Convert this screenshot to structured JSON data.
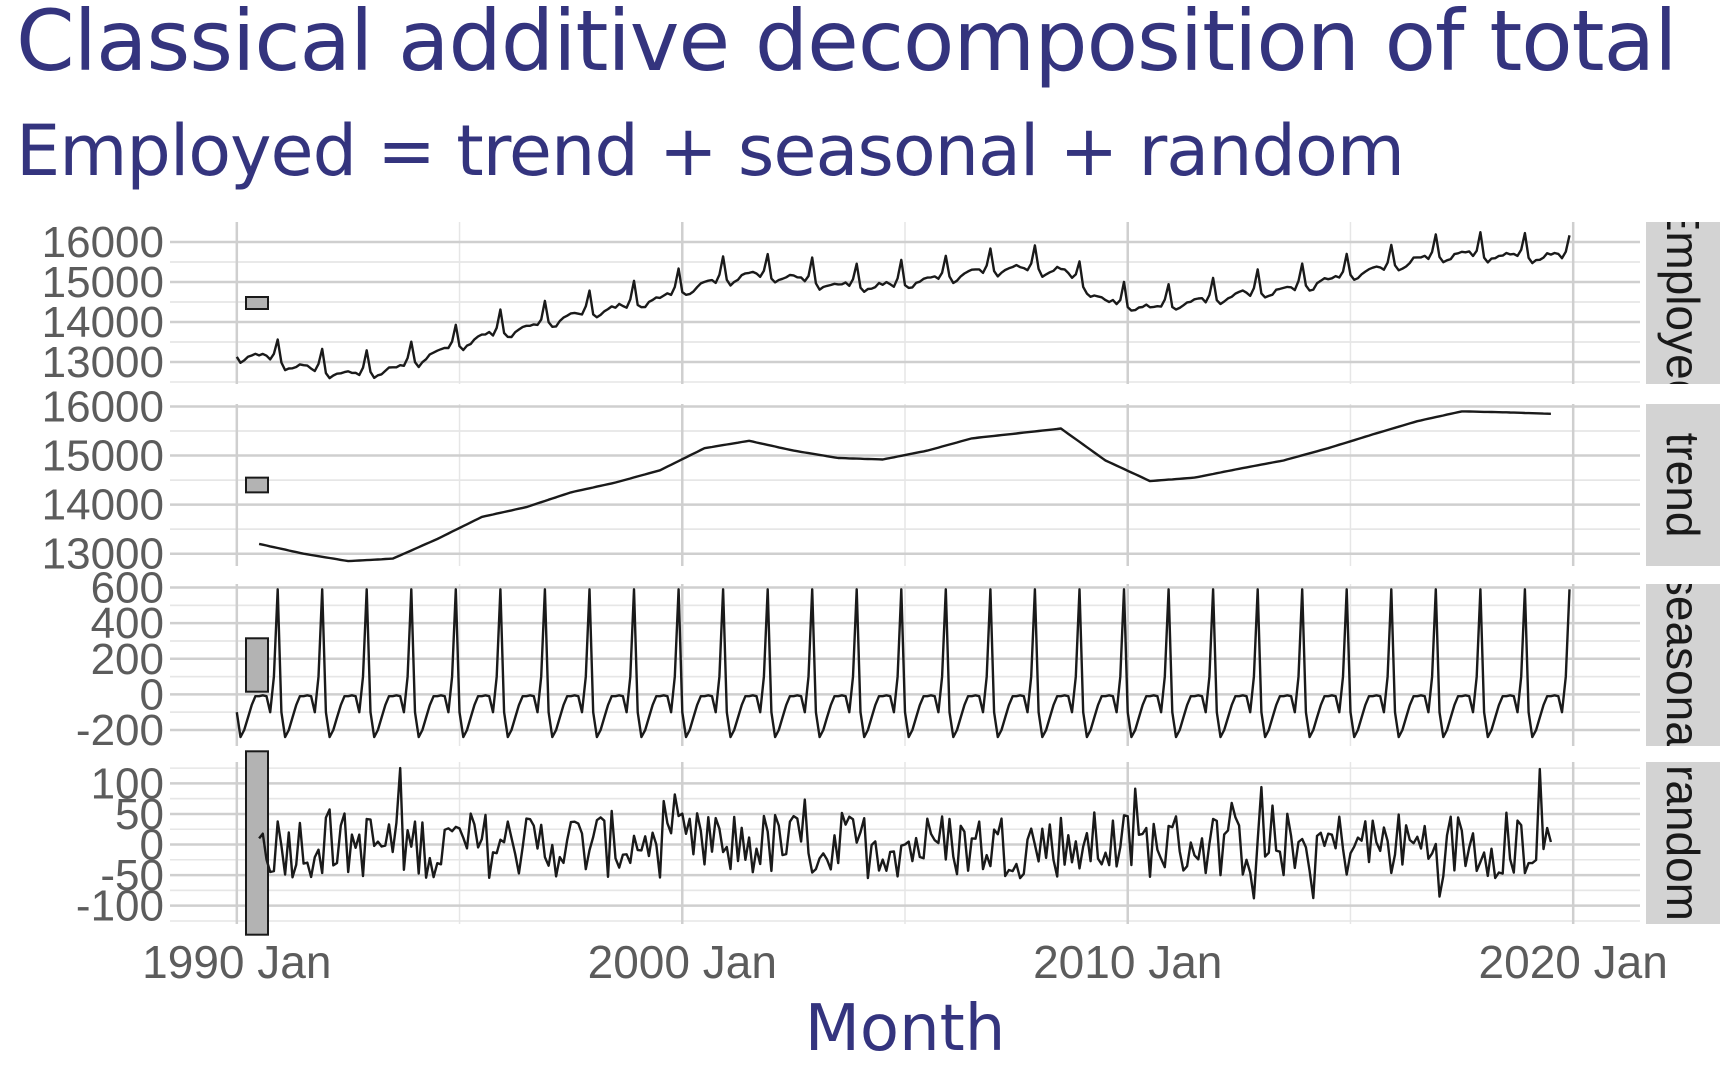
{
  "title": "Classical additive decomposition of total",
  "subtitle": "Employed = trend + seasonal + random",
  "chart_data": {
    "type": "line",
    "title": "Classical additive decomposition of total",
    "subtitle": "Employed = trend + seasonal + random",
    "xlabel": "Month",
    "x_ticks": [
      "1990 Jan",
      "2000 Jan",
      "2010 Jan",
      "2020 Jan"
    ],
    "x_range": [
      1988.5,
      2021.5
    ],
    "series": [
      {
        "name": "Employed",
        "strip_label": "Employed",
        "y_ticks": [
          13000,
          14000,
          15000,
          16000
        ],
        "ylim": [
          12450,
          16500
        ],
        "annual_points": [
          [
            1990.5,
            13200
          ],
          [
            1991.5,
            12900
          ],
          [
            1992.5,
            12750
          ],
          [
            1993.5,
            12850
          ],
          [
            1994.5,
            13300
          ],
          [
            1995.5,
            13700
          ],
          [
            1996.5,
            13900
          ],
          [
            1997.5,
            14200
          ],
          [
            1998.5,
            14400
          ],
          [
            1999.5,
            14650
          ],
          [
            2000.5,
            15000
          ],
          [
            2001.5,
            15250
          ],
          [
            2002.5,
            15150
          ],
          [
            2003.5,
            14980
          ],
          [
            2004.5,
            14950
          ],
          [
            2005.5,
            15100
          ],
          [
            2006.5,
            15300
          ],
          [
            2007.5,
            15400
          ],
          [
            2008.5,
            15350
          ],
          [
            2009.5,
            14550
          ],
          [
            2010.5,
            14400
          ],
          [
            2011.5,
            14550
          ],
          [
            2012.5,
            14750
          ],
          [
            2013.5,
            14850
          ],
          [
            2014.5,
            15100
          ],
          [
            2015.5,
            15350
          ],
          [
            2016.5,
            15600
          ],
          [
            2017.5,
            15750
          ],
          [
            2018.5,
            15700
          ],
          [
            2019.5,
            15700
          ]
        ],
        "scale_bar_height": 300
      },
      {
        "name": "trend",
        "strip_label": "trend",
        "y_ticks": [
          13000,
          14000,
          15000,
          16000
        ],
        "ylim": [
          12750,
          16050
        ],
        "annual_points": [
          [
            1990.5,
            13200
          ],
          [
            1991.5,
            13000
          ],
          [
            1992.5,
            12850
          ],
          [
            1993.5,
            12900
          ],
          [
            1994.5,
            13300
          ],
          [
            1995.5,
            13750
          ],
          [
            1996.5,
            13950
          ],
          [
            1997.5,
            14250
          ],
          [
            1998.5,
            14450
          ],
          [
            1999.5,
            14700
          ],
          [
            2000.5,
            15150
          ],
          [
            2001.5,
            15300
          ],
          [
            2002.5,
            15100
          ],
          [
            2003.5,
            14950
          ],
          [
            2004.5,
            14920
          ],
          [
            2005.5,
            15100
          ],
          [
            2006.5,
            15350
          ],
          [
            2007.5,
            15450
          ],
          [
            2008.5,
            15550
          ],
          [
            2009.5,
            14900
          ],
          [
            2010.5,
            14480
          ],
          [
            2011.5,
            14550
          ],
          [
            2012.5,
            14730
          ],
          [
            2013.5,
            14900
          ],
          [
            2014.5,
            15150
          ],
          [
            2015.5,
            15430
          ],
          [
            2016.5,
            15700
          ],
          [
            2017.5,
            15900
          ],
          [
            2018.5,
            15880
          ],
          [
            2019.5,
            15850
          ]
        ],
        "scale_bar_height": 300
      },
      {
        "name": "seasonal",
        "strip_label": "seasonal",
        "y_ticks": [
          -200,
          0,
          200,
          400,
          600
        ],
        "ylim": [
          -290,
          620
        ],
        "monthly_pattern": [
          -100,
          -240,
          -200,
          -130,
          -60,
          -10,
          -10,
          -5,
          -10,
          -100,
          100,
          590
        ],
        "scale_bar_height": 300
      },
      {
        "name": "random",
        "strip_label": "random",
        "y_ticks": [
          -100,
          -50,
          0,
          50,
          100
        ],
        "ylim": [
          -130,
          135
        ],
        "values_range": [
          -120,
          125
        ],
        "scale_bar_height": 300
      }
    ],
    "grid": true
  },
  "colors": {
    "title": "#34347e",
    "line": "#1a1a1a",
    "panel_bg": "#ffffff",
    "grid_major": "#cfcfcf",
    "grid_minor": "#e6e6e6",
    "strip_bg": "#d3d3d3",
    "scale_bar": "#b3b3b3"
  }
}
